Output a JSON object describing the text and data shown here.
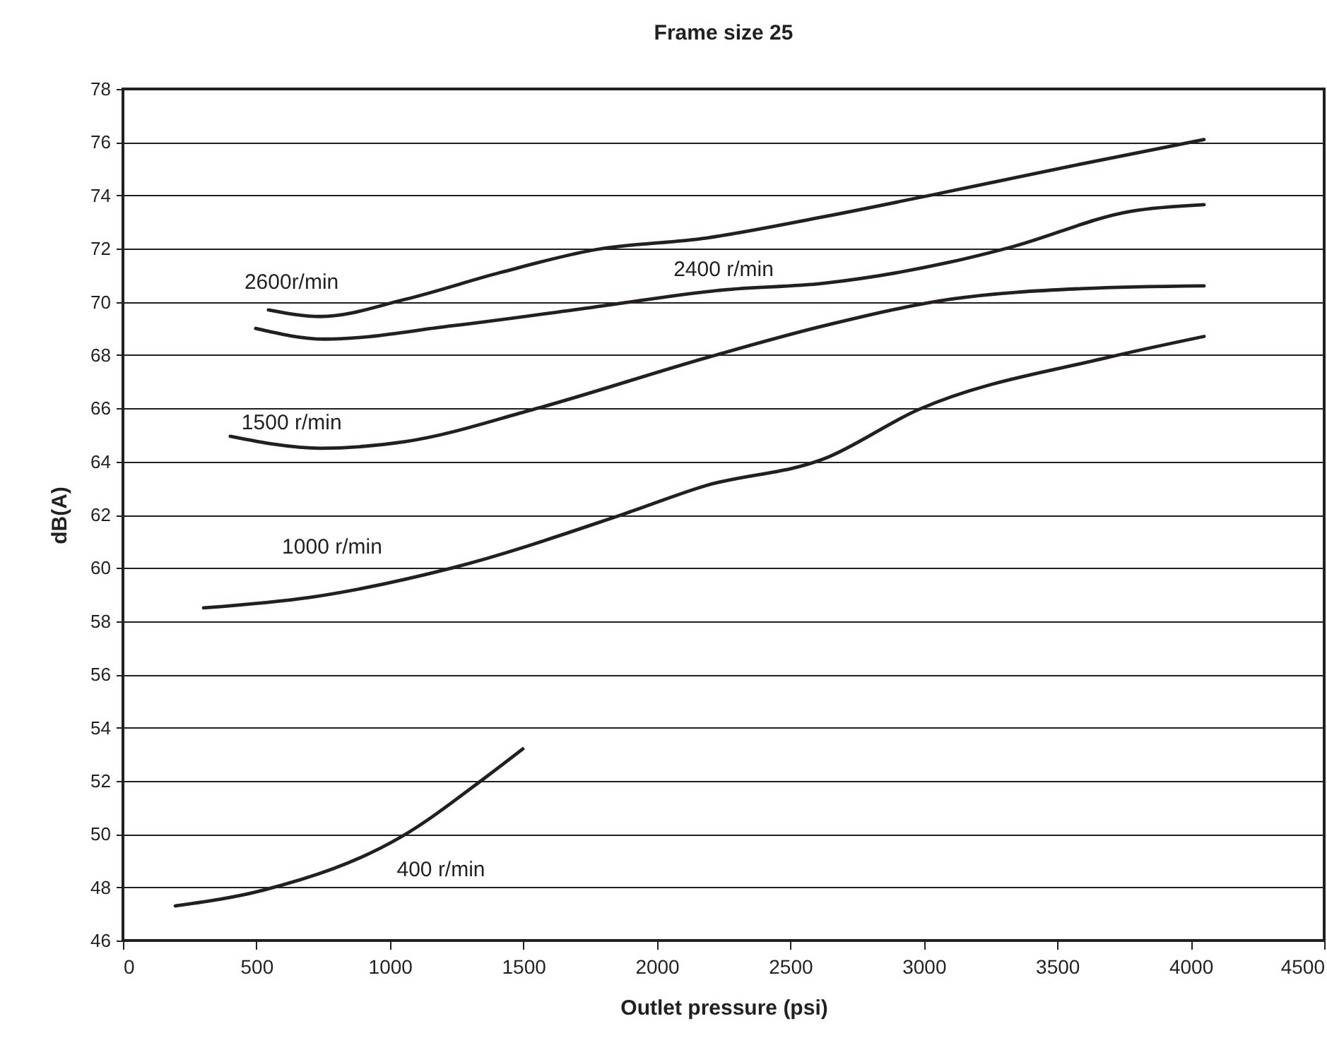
{
  "chart_data": {
    "type": "line",
    "title": "Frame size 25",
    "xlabel": "Outlet pressure (psi)",
    "ylabel": "dB(A)",
    "xlim": [
      0,
      4500
    ],
    "xticks": [
      0,
      500,
      1000,
      1500,
      2000,
      2500,
      3000,
      3500,
      4000,
      4500
    ],
    "ylim": [
      46,
      78
    ],
    "yticks": [
      46,
      48,
      50,
      52,
      54,
      56,
      58,
      60,
      62,
      64,
      66,
      68,
      70,
      72,
      74,
      76,
      78
    ],
    "grid": "y",
    "legend": false,
    "marker": "none",
    "line_style": "solid",
    "series": [
      {
        "name": "2600r/min",
        "color": "#231f20",
        "x": [
          545,
          741,
          1059,
          1413,
          1763,
          2186,
          2626,
          3070,
          3550,
          4050
        ],
        "values": [
          69.7,
          69.45,
          70.1,
          71.1,
          71.95,
          72.4,
          73.2,
          74.1,
          75.1,
          76.1
        ]
      },
      {
        "name": "2400 r/min",
        "color": "#231f20",
        "x": [
          497,
          757,
          1233,
          1763,
          2250,
          2626,
          3102,
          3325,
          3775,
          4050
        ],
        "values": [
          69.0,
          68.6,
          69.1,
          69.8,
          70.45,
          70.7,
          71.5,
          72.05,
          73.4,
          73.65
        ]
      },
      {
        "name": "1500 r/min",
        "color": "#231f20",
        "x": [
          402,
          741,
          1059,
          1535,
          2186,
          2626,
          3102,
          3600,
          4050
        ],
        "values": [
          64.95,
          64.5,
          64.75,
          65.95,
          67.9,
          69.1,
          70.1,
          70.5,
          70.6
        ]
      },
      {
        "name": "1000 r/min",
        "color": "#231f20",
        "x": [
          302,
          704,
          1233,
          1869,
          2186,
          2626,
          2980,
          3685,
          4050
        ],
        "values": [
          58.5,
          58.9,
          60.0,
          62.0,
          63.1,
          64.1,
          65.95,
          67.9,
          68.7
        ]
      },
      {
        "name": "400 r/min",
        "color": "#231f20",
        "x": [
          196,
          529,
          1043,
          1361,
          1498
        ],
        "values": [
          47.3,
          47.9,
          49.9,
          52.15,
          53.2
        ]
      }
    ]
  }
}
